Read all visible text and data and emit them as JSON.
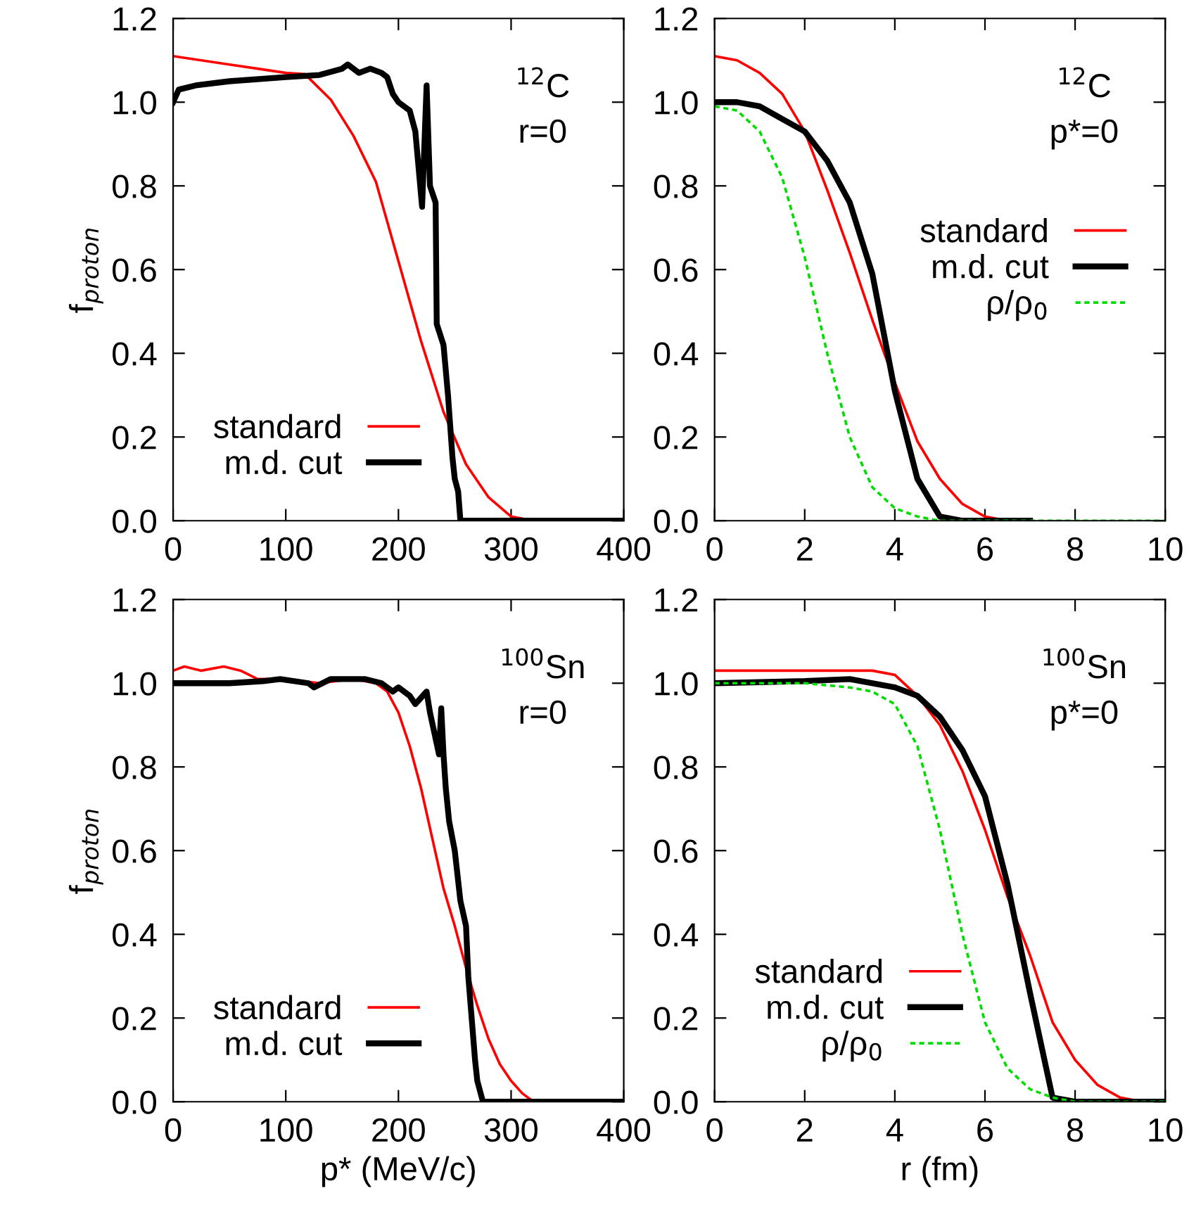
{
  "chart_data": [
    {
      "type": "line",
      "ylabel": "f$_{proton}$",
      "xlim": [
        0,
        400
      ],
      "ylim": [
        0,
        1.2
      ],
      "xticks": [
        0,
        100,
        200,
        300,
        400
      ],
      "yticks": [
        {
          "value": 0,
          "label": "0.0"
        },
        {
          "value": 0.2,
          "label": "0.2"
        },
        {
          "value": 0.4,
          "label": "0.4"
        },
        {
          "value": 0.6,
          "label": "0.6"
        },
        {
          "value": 0.8,
          "label": "0.8"
        },
        {
          "value": 1.0,
          "label": "1.0"
        },
        {
          "value": 1.2,
          "label": "1.2"
        }
      ],
      "legend": "bottom left",
      "grid": false,
      "annotations": [
        "$^{12}$C",
        "r=0"
      ],
      "series": [
        {
          "name": "standard",
          "color": "#ff0000",
          "line_style": "solid",
          "x": [
            0,
            25,
            50,
            75,
            100,
            117,
            140,
            160,
            180,
            200,
            220,
            240,
            260,
            280,
            300,
            320,
            400
          ],
          "values": [
            1.11,
            1.1,
            1.09,
            1.08,
            1.07,
            1.067,
            1.006,
            0.92,
            0.81,
            0.62,
            0.43,
            0.26,
            0.135,
            0.056,
            0.01,
            0.0,
            0.0
          ]
        },
        {
          "name": "m.d. cut",
          "color": "#000000",
          "line_style": "solid",
          "x": [
            0,
            5,
            20,
            50,
            100,
            130,
            150,
            155,
            165,
            175,
            185,
            190,
            195,
            200,
            210,
            215,
            221,
            225,
            228,
            233,
            234,
            240,
            244,
            248,
            250,
            253,
            255,
            400
          ],
          "values": [
            1.0,
            1.03,
            1.04,
            1.05,
            1.06,
            1.065,
            1.08,
            1.09,
            1.07,
            1.08,
            1.07,
            1.06,
            1.02,
            1.0,
            0.98,
            0.93,
            0.75,
            1.04,
            0.8,
            0.76,
            0.47,
            0.42,
            0.3,
            0.15,
            0.1,
            0.07,
            0.0,
            0.0
          ]
        }
      ]
    },
    {
      "type": "line",
      "xlim": [
        0,
        10
      ],
      "ylim": [
        0,
        1.2
      ],
      "xticks": [
        0,
        2,
        4,
        6,
        8,
        10
      ],
      "yticks": [
        {
          "value": 0,
          "label": "0.0"
        },
        {
          "value": 0.2,
          "label": "0.2"
        },
        {
          "value": 0.4,
          "label": "0.4"
        },
        {
          "value": 0.6,
          "label": "0.6"
        },
        {
          "value": 0.8,
          "label": "0.8"
        },
        {
          "value": 1.0,
          "label": "1.0"
        },
        {
          "value": 1.2,
          "label": "1.2"
        }
      ],
      "legend": "right",
      "grid": false,
      "annotations": [
        "$^{12}$C",
        "p*=0"
      ],
      "series": [
        {
          "name": "standard",
          "color": "#ff0000",
          "line_style": "solid",
          "x": [
            0,
            0.5,
            1,
            1.5,
            2,
            2.5,
            3,
            3.5,
            4,
            4.5,
            5,
            5.5,
            6,
            6.5,
            7
          ],
          "values": [
            1.11,
            1.1,
            1.07,
            1.02,
            0.93,
            0.79,
            0.64,
            0.48,
            0.33,
            0.19,
            0.1,
            0.04,
            0.01,
            0.0,
            0.0
          ]
        },
        {
          "name": "m.d. cut",
          "color": "#000000",
          "line_style": "solid",
          "x": [
            0,
            0.5,
            1,
            1.5,
            2,
            2.5,
            3,
            3.5,
            4,
            4.5,
            5,
            5.5,
            7
          ],
          "values": [
            1.0,
            1.0,
            0.99,
            0.96,
            0.93,
            0.86,
            0.76,
            0.59,
            0.31,
            0.1,
            0.01,
            0.0,
            0.0
          ]
        },
        {
          "name": "ρ/ρ$_{0}$",
          "color": "#00dd00",
          "line_style": "dashed",
          "x": [
            0,
            0.5,
            1,
            1.5,
            2,
            2.5,
            3,
            3.5,
            4,
            4.5,
            5,
            10
          ],
          "values": [
            0.99,
            0.98,
            0.93,
            0.82,
            0.63,
            0.4,
            0.2,
            0.08,
            0.03,
            0.01,
            0.0,
            0.0
          ]
        }
      ]
    },
    {
      "type": "line",
      "xlabel": "p* (MeV/c)",
      "ylabel": "f$_{proton}$",
      "xlim": [
        0,
        400
      ],
      "ylim": [
        0,
        1.2
      ],
      "xticks": [
        0,
        100,
        200,
        300,
        400
      ],
      "yticks": [
        {
          "value": 0,
          "label": "0.0"
        },
        {
          "value": 0.2,
          "label": "0.2"
        },
        {
          "value": 0.4,
          "label": "0.4"
        },
        {
          "value": 0.6,
          "label": "0.6"
        },
        {
          "value": 0.8,
          "label": "0.8"
        },
        {
          "value": 1.0,
          "label": "1.0"
        },
        {
          "value": 1.2,
          "label": "1.2"
        }
      ],
      "legend": "bottom left",
      "grid": false,
      "annotations": [
        "$^{100}$Sn",
        "r=0"
      ],
      "series": [
        {
          "name": "standard",
          "color": "#ff0000",
          "line_style": "solid",
          "x": [
            0,
            10,
            25,
            45,
            60,
            75,
            100,
            130,
            160,
            180,
            190,
            200,
            210,
            220,
            230,
            240,
            250,
            260,
            270,
            280,
            290,
            300,
            310,
            320,
            400
          ],
          "values": [
            1.03,
            1.04,
            1.03,
            1.04,
            1.03,
            1.01,
            1.01,
            1.0,
            1.01,
            1.0,
            0.98,
            0.93,
            0.85,
            0.75,
            0.63,
            0.51,
            0.42,
            0.32,
            0.23,
            0.15,
            0.09,
            0.05,
            0.02,
            0.0,
            0.0
          ]
        },
        {
          "name": "m.d. cut",
          "color": "#000000",
          "line_style": "solid",
          "x": [
            0,
            50,
            80,
            95,
            120,
            125,
            140,
            170,
            185,
            195,
            200,
            210,
            215,
            225,
            228,
            232,
            236,
            238,
            240,
            242,
            245,
            250,
            255,
            260,
            262,
            265,
            268,
            270,
            275,
            400
          ],
          "values": [
            1.0,
            1.0,
            1.005,
            1.01,
            1.0,
            0.99,
            1.01,
            1.01,
            1.0,
            0.98,
            0.99,
            0.97,
            0.95,
            0.98,
            0.93,
            0.88,
            0.83,
            0.94,
            0.83,
            0.75,
            0.67,
            0.6,
            0.48,
            0.42,
            0.3,
            0.2,
            0.1,
            0.05,
            0.0,
            0.0
          ]
        }
      ]
    },
    {
      "type": "line",
      "xlabel": "r (fm)",
      "xlim": [
        0,
        10
      ],
      "ylim": [
        0,
        1.2
      ],
      "xticks": [
        0,
        2,
        4,
        6,
        8,
        10
      ],
      "yticks": [
        {
          "value": 0,
          "label": "0.0"
        },
        {
          "value": 0.2,
          "label": "0.2"
        },
        {
          "value": 0.4,
          "label": "0.4"
        },
        {
          "value": 0.6,
          "label": "0.6"
        },
        {
          "value": 0.8,
          "label": "0.8"
        },
        {
          "value": 1.0,
          "label": "1.0"
        },
        {
          "value": 1.2,
          "label": "1.2"
        }
      ],
      "legend": "bottom left",
      "grid": false,
      "annotations": [
        "$^{100}$Sn",
        "p*=0"
      ],
      "series": [
        {
          "name": "standard",
          "color": "#ff0000",
          "line_style": "solid",
          "x": [
            0,
            2,
            3,
            3.5,
            4,
            4.5,
            5,
            5.5,
            6,
            6.5,
            7,
            7.5,
            8,
            8.5,
            9,
            9.5,
            10
          ],
          "values": [
            1.03,
            1.03,
            1.03,
            1.03,
            1.02,
            0.97,
            0.9,
            0.79,
            0.65,
            0.49,
            0.35,
            0.19,
            0.1,
            0.04,
            0.01,
            0.0,
            0.0
          ]
        },
        {
          "name": "m.d. cut",
          "color": "#000000",
          "line_style": "solid",
          "x": [
            0,
            2,
            3,
            4,
            4.5,
            5,
            5.5,
            6,
            6.5,
            7,
            7.5,
            8,
            10
          ],
          "values": [
            1.0,
            1.005,
            1.01,
            0.99,
            0.97,
            0.92,
            0.84,
            0.73,
            0.52,
            0.26,
            0.01,
            0.0,
            0.0
          ]
        },
        {
          "name": "ρ/ρ$_{0}$",
          "color": "#00dd00",
          "line_style": "dashed",
          "x": [
            0,
            2,
            3,
            3.5,
            4,
            4.5,
            5,
            5.5,
            6,
            6.5,
            7,
            7.5,
            8,
            10
          ],
          "values": [
            1.0,
            1.0,
            0.99,
            0.98,
            0.95,
            0.85,
            0.65,
            0.4,
            0.19,
            0.08,
            0.03,
            0.01,
            0.0,
            0.0
          ]
        }
      ]
    }
  ]
}
